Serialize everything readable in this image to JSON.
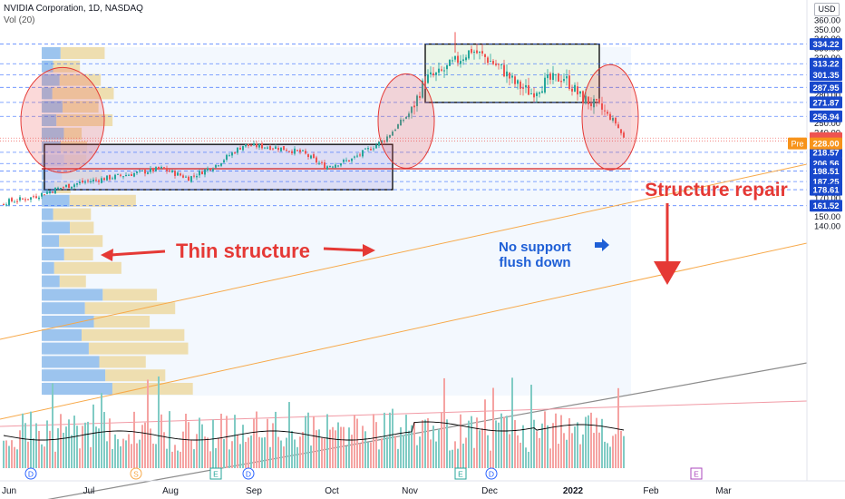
{
  "header": {
    "title": "NVIDIA Corporation, 1D, NASDAQ",
    "indicator": "Vol (20)",
    "currency": "USD"
  },
  "annotations": {
    "thin_structure": "Thin structure",
    "structure_repair": "Structure repair",
    "no_support_line1": "No support",
    "no_support_line2": "flush down",
    "pre_label": "Pre"
  },
  "colors": {
    "up": "#26a69a",
    "down": "#ef5350",
    "annotation_red": "#e53935",
    "annotation_blue": "#1e5fd6",
    "level_line": "#2962ff",
    "price_tag": "#1848cc",
    "pre_tag": "#f7931a",
    "box_fill_green": "#e8f5e0",
    "box_fill_blue": "#d6d6f2"
  },
  "chart_data": {
    "type": "candlestick",
    "symbol": "NVDA",
    "interval": "1D",
    "y_axis": {
      "ticks": [
        140,
        150,
        160,
        170,
        180,
        190,
        200,
        210,
        220,
        230,
        240,
        250,
        260,
        270,
        280,
        290,
        300,
        310,
        320,
        330,
        340,
        350,
        360
      ],
      "range": [
        136,
        366
      ]
    },
    "x_axis": {
      "labels": [
        "Jun",
        "Jul",
        "Aug",
        "Sep",
        "Oct",
        "Nov",
        "Dec",
        "2022",
        "Feb",
        "Mar"
      ]
    },
    "price_levels": [
      {
        "value": 334.22,
        "label": "334.22"
      },
      {
        "value": 313.22,
        "label": "313.22"
      },
      {
        "value": 301.35,
        "label": "301.35"
      },
      {
        "value": 287.95,
        "label": "287.95"
      },
      {
        "value": 271.87,
        "label": "271.87"
      },
      {
        "value": 256.94,
        "label": "256.94"
      },
      {
        "value": 218.57,
        "label": "218.57"
      },
      {
        "value": 206.56,
        "label": "206.56"
      },
      {
        "value": 198.51,
        "label": "198.51"
      },
      {
        "value": 187.25,
        "label": "187.25"
      },
      {
        "value": 178.61,
        "label": "178.61"
      },
      {
        "value": 161.52,
        "label": "161.52"
      }
    ],
    "last_price": {
      "value": 233.74,
      "label": "233.74"
    },
    "prev_close": {
      "value": 230.8,
      "label": "230.80"
    },
    "premarket": {
      "value": 228.0,
      "label": "228.00"
    },
    "red_level": 201,
    "anchors": [
      {
        "x": 0,
        "price": 165
      },
      {
        "x": 10,
        "price": 170
      },
      {
        "x": 20,
        "price": 180
      },
      {
        "x": 28,
        "price": 186
      },
      {
        "x": 38,
        "price": 191
      },
      {
        "x": 48,
        "price": 196
      },
      {
        "x": 58,
        "price": 201
      },
      {
        "x": 68,
        "price": 191
      },
      {
        "x": 78,
        "price": 205
      },
      {
        "x": 88,
        "price": 226
      },
      {
        "x": 100,
        "price": 224
      },
      {
        "x": 110,
        "price": 218
      },
      {
        "x": 118,
        "price": 203
      },
      {
        "x": 128,
        "price": 211
      },
      {
        "x": 140,
        "price": 232
      },
      {
        "x": 150,
        "price": 263
      },
      {
        "x": 155,
        "price": 297
      },
      {
        "x": 160,
        "price": 302
      },
      {
        "x": 166,
        "price": 315
      },
      {
        "x": 172,
        "price": 328
      },
      {
        "x": 177,
        "price": 320
      },
      {
        "x": 183,
        "price": 308
      },
      {
        "x": 188,
        "price": 292
      },
      {
        "x": 194,
        "price": 282
      },
      {
        "x": 200,
        "price": 295
      },
      {
        "x": 206,
        "price": 299
      },
      {
        "x": 212,
        "price": 278
      },
      {
        "x": 220,
        "price": 264
      },
      {
        "x": 225,
        "price": 250
      },
      {
        "x": 228,
        "price": 233.7
      }
    ],
    "boxes": [
      {
        "name": "consolidation-top",
        "x_start": 155,
        "x_end": 219,
        "low": 271.87,
        "high": 334.22
      },
      {
        "name": "consolidation-bottom",
        "x_start": 15,
        "x_end": 143,
        "low": 178.61,
        "high": 227
      }
    ],
    "ellipses": [
      {
        "name": "left",
        "x": 17,
        "price": 253
      },
      {
        "name": "mid",
        "x": 148,
        "price": 252
      },
      {
        "name": "right",
        "x": 223,
        "price": 256
      }
    ]
  }
}
